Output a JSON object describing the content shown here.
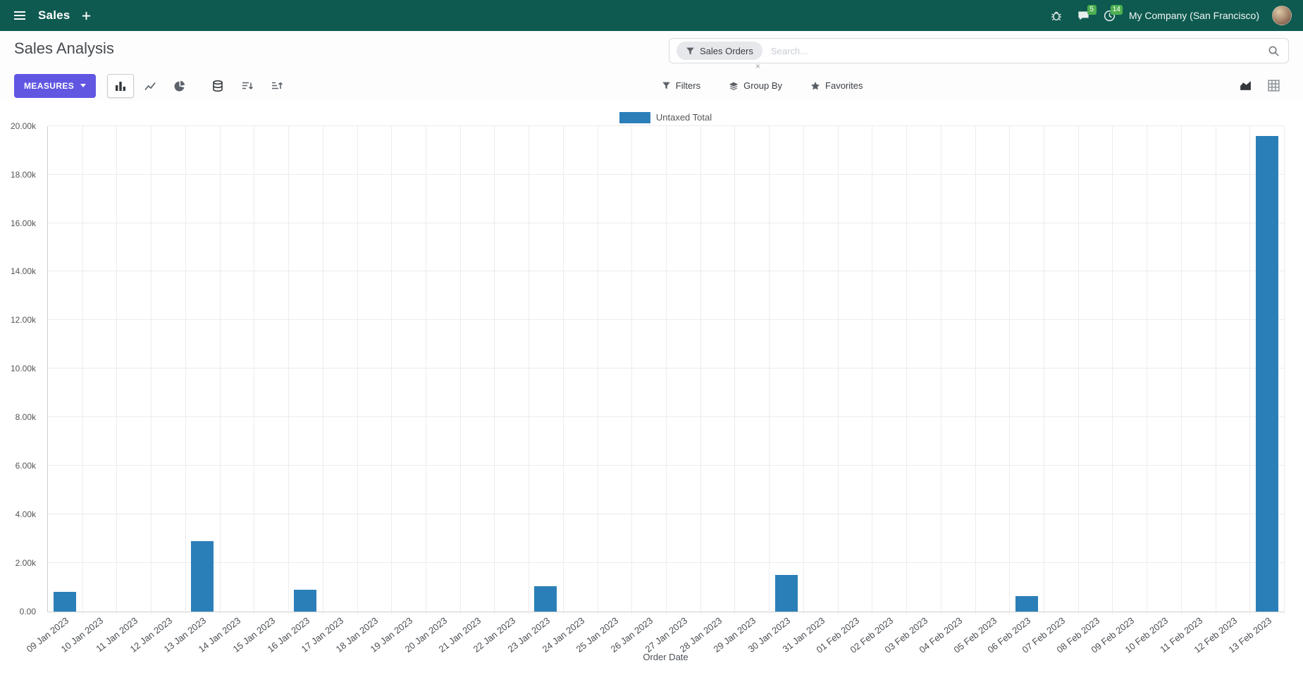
{
  "topbar": {
    "app_name": "Sales",
    "company": "My Company (San Francisco)",
    "chat_badge": "5",
    "activity_badge": "14"
  },
  "control_panel": {
    "title": "Sales Analysis",
    "search": {
      "facet_label": "Sales Orders",
      "facet_remove": "×",
      "placeholder": "Search..."
    },
    "measures_label": "MEASURES",
    "filters_label": "Filters",
    "group_by_label": "Group By",
    "favorites_label": "Favorites"
  },
  "colors": {
    "topbar_bg": "#0e5a50",
    "accent_button": "#6156e2",
    "badge_green": "#4caf50",
    "bar_blue": "#2b7fb8"
  },
  "chart_data": {
    "type": "bar",
    "title": "",
    "xlabel": "Order Date",
    "ylabel": "",
    "ylim": [
      0,
      20000
    ],
    "y_tick_labels": [
      "0.00",
      "2.00k",
      "4.00k",
      "6.00k",
      "8.00k",
      "10.00k",
      "12.00k",
      "14.00k",
      "16.00k",
      "18.00k",
      "20.00k"
    ],
    "legend_position": "top",
    "grid": true,
    "categories": [
      "09 Jan 2023",
      "10 Jan 2023",
      "11 Jan 2023",
      "12 Jan 2023",
      "13 Jan 2023",
      "14 Jan 2023",
      "15 Jan 2023",
      "16 Jan 2023",
      "17 Jan 2023",
      "18 Jan 2023",
      "19 Jan 2023",
      "20 Jan 2023",
      "21 Jan 2023",
      "22 Jan 2023",
      "23 Jan 2023",
      "24 Jan 2023",
      "25 Jan 2023",
      "26 Jan 2023",
      "27 Jan 2023",
      "28 Jan 2023",
      "29 Jan 2023",
      "30 Jan 2023",
      "31 Jan 2023",
      "01 Feb 2023",
      "02 Feb 2023",
      "03 Feb 2023",
      "04 Feb 2023",
      "05 Feb 2023",
      "06 Feb 2023",
      "07 Feb 2023",
      "08 Feb 2023",
      "09 Feb 2023",
      "10 Feb 2023",
      "11 Feb 2023",
      "12 Feb 2023",
      "13 Feb 2023"
    ],
    "series": [
      {
        "name": "Untaxed Total",
        "color": "#2b7fb8",
        "values": [
          800,
          0,
          0,
          0,
          2900,
          0,
          0,
          900,
          0,
          0,
          0,
          0,
          0,
          0,
          1050,
          0,
          0,
          0,
          0,
          0,
          0,
          1500,
          0,
          0,
          0,
          0,
          0,
          0,
          620,
          0,
          0,
          0,
          0,
          0,
          0,
          19600
        ]
      }
    ]
  }
}
